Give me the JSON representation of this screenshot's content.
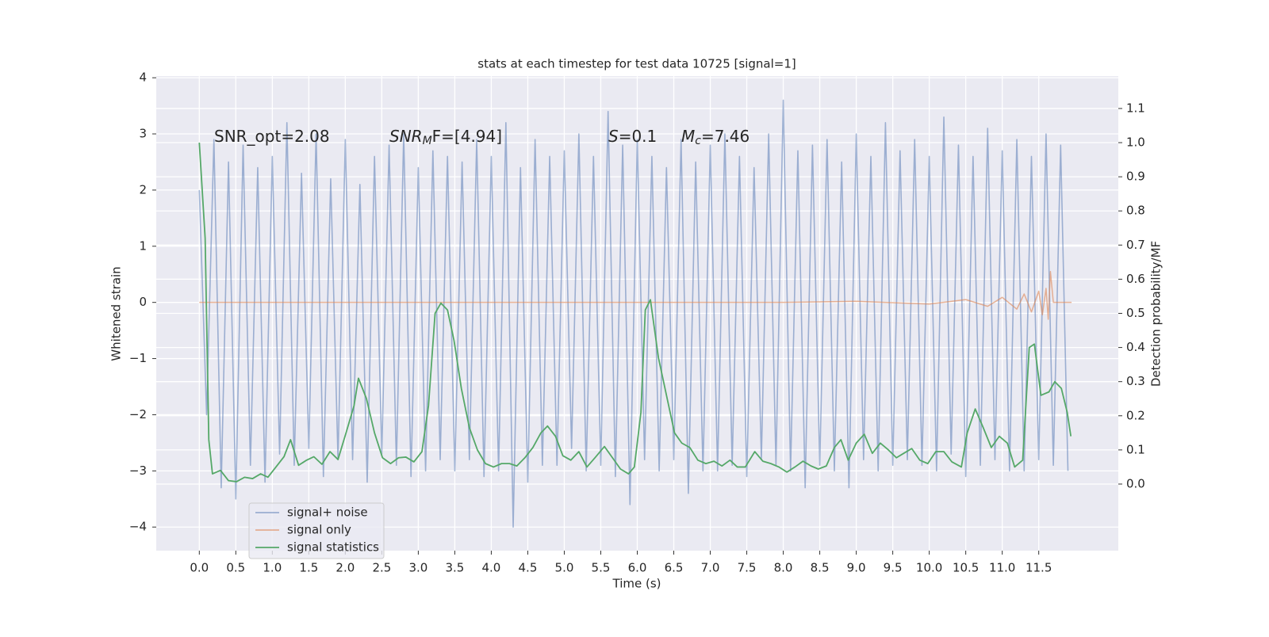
{
  "chart_data": {
    "type": "line",
    "title": "stats at each timestep for test data 10725 [signal=1]",
    "xlabel": "Time (s)",
    "ylabel": "Whitened strain",
    "y2label": "Detection probability/MF",
    "annotations": [
      [
        {
          "text": "SNR_opt=2.08",
          "style": "normal"
        }
      ],
      [
        {
          "text": "SNR",
          "style": "italic"
        },
        {
          "text": "M",
          "style": "sub"
        },
        {
          "text": "F=[4.94]",
          "style": "normal"
        }
      ],
      [
        {
          "text": "S",
          "style": "italic"
        },
        {
          "text": "=0.1",
          "style": "normal"
        }
      ],
      [
        {
          "text": "M",
          "style": "italic"
        },
        {
          "text": "c",
          "style": "sub"
        },
        {
          "text": "=7.46",
          "style": "normal"
        }
      ]
    ],
    "xlim": [
      -0.59,
      12.59
    ],
    "ylim": [
      -4.42,
      4.03
    ],
    "y2lim": [
      -0.195,
      1.195
    ],
    "grid": true,
    "xticks": [
      {
        "value": 0,
        "label": "0.0"
      },
      0.5,
      {
        "value": 1,
        "label": "1.0"
      },
      1.5,
      {
        "value": 2,
        "label": "2.0"
      },
      2.5,
      {
        "value": 3,
        "label": "3.0"
      },
      3.5,
      {
        "value": 4,
        "label": "4.0"
      },
      4.5,
      {
        "value": 5,
        "label": "5.0"
      },
      5.5,
      {
        "value": 6,
        "label": "6.0"
      },
      6.5,
      {
        "value": 7,
        "label": "7.0"
      },
      7.5,
      {
        "value": 8,
        "label": "8.0"
      },
      8.5,
      {
        "value": 9,
        "label": "9.0"
      },
      9.5,
      {
        "value": 10,
        "label": "10.0"
      },
      10.5,
      {
        "value": 11,
        "label": "11.0"
      },
      11.5
    ],
    "yticks": [
      {
        "value": -4,
        "label": "−4"
      },
      {
        "value": -3,
        "label": "−3"
      },
      {
        "value": -2,
        "label": "−2"
      },
      {
        "value": -1,
        "label": "−1"
      },
      0,
      1,
      2,
      3,
      4
    ],
    "y2ticks": [
      {
        "value": 0,
        "label": "0.0"
      },
      0.1,
      0.2,
      0.3,
      0.4,
      0.5,
      0.6,
      0.7,
      0.8,
      0.9,
      {
        "value": 1,
        "label": "1.0"
      },
      1.1
    ],
    "legend": "lower left",
    "series": [
      {
        "name": "signal+ noise",
        "color": "#4c72b0",
        "axis": "y",
        "x": [
          0.0,
          0.1,
          0.2,
          0.3,
          0.4,
          0.5,
          0.6,
          0.7,
          0.8,
          0.9,
          1.0,
          1.1,
          1.2,
          1.3,
          1.4,
          1.5,
          1.6,
          1.7,
          1.8,
          1.9,
          2.0,
          2.1,
          2.2,
          2.3,
          2.4,
          2.5,
          2.6,
          2.7,
          2.8,
          2.9,
          3.0,
          3.1,
          3.2,
          3.3,
          3.4,
          3.5,
          3.6,
          3.7,
          3.8,
          3.9,
          4.0,
          4.1,
          4.2,
          4.3,
          4.4,
          4.5,
          4.6,
          4.7,
          4.8,
          4.9,
          5.0,
          5.1,
          5.2,
          5.3,
          5.4,
          5.5,
          5.6,
          5.7,
          5.8,
          5.9,
          6.0,
          6.1,
          6.2,
          6.3,
          6.4,
          6.5,
          6.6,
          6.7,
          6.8,
          6.9,
          7.0,
          7.1,
          7.2,
          7.3,
          7.4,
          7.5,
          7.6,
          7.7,
          7.8,
          7.9,
          8.0,
          8.1,
          8.2,
          8.3,
          8.4,
          8.5,
          8.6,
          8.7,
          8.8,
          8.9,
          9.0,
          9.1,
          9.2,
          9.3,
          9.4,
          9.5,
          9.6,
          9.7,
          9.8,
          9.9,
          10.0,
          10.1,
          10.2,
          10.3,
          10.4,
          10.5,
          10.6,
          10.7,
          10.8,
          10.9,
          11.0,
          11.1,
          11.2,
          11.3,
          11.4,
          11.5,
          11.6,
          11.7,
          11.8,
          11.9
        ],
        "values": [
          2.0,
          -2.0,
          2.9,
          -3.3,
          2.5,
          -3.5,
          2.8,
          -2.9,
          2.4,
          -3.2,
          2.6,
          -2.7,
          3.2,
          -2.9,
          2.3,
          -2.6,
          3.0,
          -3.1,
          2.2,
          -2.8,
          2.9,
          -2.8,
          2.1,
          -3.2,
          2.6,
          -2.7,
          2.8,
          -2.9,
          3.0,
          -3.1,
          2.4,
          -3.0,
          2.7,
          -2.8,
          2.6,
          -3.0,
          2.5,
          -2.8,
          2.9,
          -3.1,
          2.6,
          -3.0,
          3.2,
          -4.0,
          2.4,
          -3.2,
          2.9,
          -2.9,
          2.6,
          -2.9,
          2.7,
          -2.6,
          3.0,
          -3.0,
          2.6,
          -2.9,
          3.4,
          -3.1,
          2.8,
          -3.6,
          2.9,
          -2.8,
          2.6,
          -3.0,
          2.4,
          -2.8,
          2.9,
          -3.4,
          2.5,
          -3.0,
          2.8,
          -3.0,
          3.0,
          -2.9,
          2.6,
          -3.1,
          2.4,
          -2.8,
          3.0,
          -2.9,
          3.6,
          -3.0,
          2.7,
          -3.3,
          2.8,
          -2.9,
          2.9,
          -3.0,
          2.5,
          -3.3,
          3.0,
          -2.8,
          2.6,
          -3.0,
          3.2,
          -2.9,
          2.7,
          -2.8,
          2.9,
          -2.9,
          2.6,
          -3.0,
          3.3,
          -2.7,
          2.8,
          -3.1,
          2.6,
          -2.9,
          3.1,
          -2.8,
          2.7,
          -3.0,
          2.9,
          -3.0,
          2.6,
          -2.8,
          3.0,
          -2.9,
          2.8,
          -3.0
        ]
      },
      {
        "name": "signal only",
        "color": "#dd8452",
        "axis": "y",
        "x": [
          0,
          2,
          4,
          6,
          8,
          9,
          10,
          10.5,
          10.8,
          11.0,
          11.2,
          11.3,
          11.4,
          11.5,
          11.55,
          11.6,
          11.63,
          11.66,
          11.7,
          11.95
        ],
        "values": [
          0,
          0,
          0,
          0,
          0,
          0.02,
          -0.03,
          0.05,
          -0.07,
          0.09,
          -0.12,
          0.15,
          -0.17,
          0.2,
          -0.22,
          0.25,
          -0.3,
          0.55,
          0,
          0
        ]
      },
      {
        "name": "signal statistics",
        "color": "#55a868",
        "axis": "y2",
        "x": [
          0.0,
          0.08,
          0.13,
          0.18,
          0.29,
          0.4,
          0.51,
          0.62,
          0.73,
          0.84,
          0.94,
          1.05,
          1.16,
          1.25,
          1.36,
          1.47,
          1.57,
          1.68,
          1.79,
          1.9,
          2.01,
          2.12,
          2.18,
          2.29,
          2.4,
          2.51,
          2.62,
          2.73,
          2.83,
          2.94,
          3.05,
          3.14,
          3.23,
          3.31,
          3.4,
          3.49,
          3.59,
          3.7,
          3.81,
          3.92,
          4.03,
          4.14,
          4.25,
          4.35,
          4.46,
          4.57,
          4.68,
          4.77,
          4.88,
          4.98,
          5.09,
          5.2,
          5.31,
          5.42,
          5.55,
          5.66,
          5.77,
          5.88,
          5.96,
          6.05,
          6.11,
          6.18,
          6.29,
          6.4,
          6.51,
          6.61,
          6.72,
          6.83,
          6.94,
          7.05,
          7.16,
          7.27,
          7.37,
          7.48,
          7.61,
          7.72,
          7.83,
          7.94,
          8.05,
          8.16,
          8.27,
          8.38,
          8.48,
          8.59,
          8.7,
          8.79,
          8.89,
          9.0,
          9.11,
          9.22,
          9.33,
          9.44,
          9.55,
          9.65,
          9.76,
          9.87,
          9.98,
          10.09,
          10.2,
          10.31,
          10.44,
          10.52,
          10.63,
          10.74,
          10.85,
          10.96,
          11.07,
          11.17,
          11.28,
          11.37,
          11.44,
          11.53,
          11.64,
          11.72,
          11.81,
          11.89,
          11.94
        ],
        "values": [
          1.0,
          0.72,
          0.13,
          0.03,
          0.04,
          0.01,
          0.007,
          0.02,
          0.016,
          0.03,
          0.02,
          0.05,
          0.08,
          0.13,
          0.055,
          0.07,
          0.08,
          0.058,
          0.095,
          0.072,
          0.15,
          0.23,
          0.31,
          0.25,
          0.15,
          0.077,
          0.06,
          0.077,
          0.079,
          0.065,
          0.095,
          0.23,
          0.5,
          0.53,
          0.51,
          0.42,
          0.28,
          0.165,
          0.1,
          0.06,
          0.05,
          0.06,
          0.06,
          0.053,
          0.077,
          0.107,
          0.15,
          0.17,
          0.14,
          0.083,
          0.07,
          0.095,
          0.05,
          0.077,
          0.11,
          0.077,
          0.044,
          0.03,
          0.05,
          0.21,
          0.51,
          0.54,
          0.37,
          0.26,
          0.15,
          0.12,
          0.107,
          0.07,
          0.06,
          0.067,
          0.053,
          0.07,
          0.05,
          0.05,
          0.095,
          0.067,
          0.06,
          0.05,
          0.035,
          0.05,
          0.067,
          0.053,
          0.044,
          0.053,
          0.107,
          0.13,
          0.07,
          0.12,
          0.146,
          0.09,
          0.12,
          0.1,
          0.077,
          0.09,
          0.104,
          0.07,
          0.06,
          0.095,
          0.095,
          0.065,
          0.05,
          0.15,
          0.22,
          0.165,
          0.107,
          0.14,
          0.12,
          0.05,
          0.07,
          0.4,
          0.41,
          0.26,
          0.27,
          0.3,
          0.28,
          0.21,
          0.14
        ]
      }
    ]
  }
}
